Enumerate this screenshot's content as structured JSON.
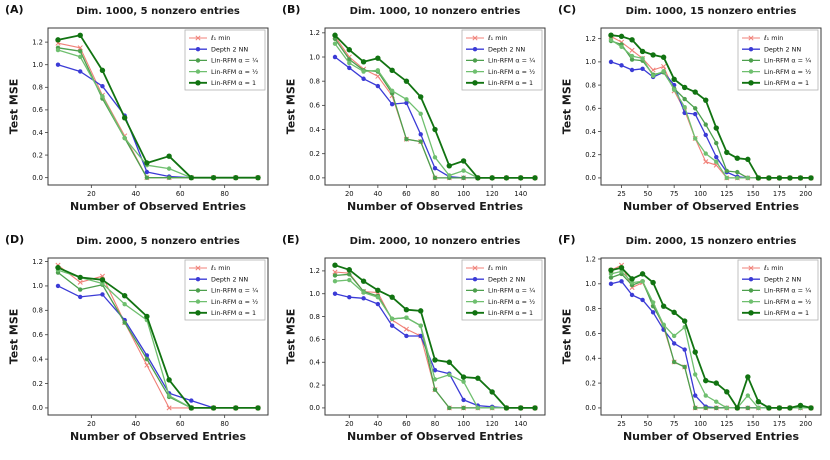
{
  "figure": {
    "xlabel": "Number of Observed Entries",
    "ylabel": "Test MSE",
    "colors": {
      "l1_min": "#f08078",
      "depth2_nn": "#3b3bd6",
      "lin_rfm_quarter": "#4d9f4d",
      "lin_rfm_half": "#6fbf6f",
      "lin_rfm_one": "#117311"
    }
  },
  "chart_data": [
    {
      "type": "line",
      "label": "(A)",
      "title": "Dim. 1000, 5 nonzero entries",
      "xlabel": "Number of Observed Entries",
      "ylabel": "Test MSE",
      "x": [
        5,
        15,
        25,
        35,
        45,
        55,
        65,
        75,
        85,
        95
      ],
      "xticks": [
        20,
        40,
        60,
        80
      ],
      "yticks": [
        0,
        0.2,
        0.4,
        0.6,
        0.8,
        1,
        1.2
      ],
      "xlim": [
        0.5,
        99.5
      ],
      "ylim": [
        -0.065,
        1.325
      ],
      "legend_position": "upper right",
      "series": [
        {
          "name": "ℓ₁ min",
          "color": "#f08078",
          "marker": "x",
          "lw": 1.1,
          "values": [
            1.19,
            1.15,
            0.73,
            0.37,
            0.0,
            0.0,
            0.0,
            0.0,
            0.0,
            0.0
          ]
        },
        {
          "name": "Depth 2 NN",
          "color": "#3b3bd6",
          "marker": "o",
          "lw": 1.3,
          "values": [
            1.0,
            0.94,
            0.81,
            0.55,
            0.05,
            0.01,
            0.0,
            0.0,
            0.0,
            0.0
          ]
        },
        {
          "name": "Lin-RFM α = ¼",
          "color": "#4d9f4d",
          "marker": "o",
          "lw": 1.3,
          "values": [
            1.15,
            1.12,
            0.7,
            0.35,
            0.0,
            0.0,
            0.0,
            0.0,
            0.0,
            0.0
          ]
        },
        {
          "name": "Lin-RFM α = ½",
          "color": "#6fbf6f",
          "marker": "o",
          "lw": 1.3,
          "values": [
            1.13,
            1.07,
            0.72,
            0.35,
            0.11,
            0.08,
            0.0,
            0.0,
            0.0,
            0.0
          ]
        },
        {
          "name": "Lin-RFM α = 1",
          "color": "#117311",
          "marker": "o",
          "lw": 1.8,
          "values": [
            1.22,
            1.26,
            0.95,
            0.53,
            0.13,
            0.19,
            0.0,
            0.0,
            0.0,
            0.0
          ]
        }
      ]
    },
    {
      "type": "line",
      "label": "(B)",
      "title": "Dim. 1000, 10 nonzero entries",
      "xlabel": "Number of Observed Entries",
      "ylabel": "Test MSE",
      "x": [
        10,
        20,
        30,
        40,
        50,
        60,
        70,
        80,
        90,
        100,
        110,
        120,
        130,
        140,
        150
      ],
      "xticks": [
        20,
        40,
        60,
        80,
        100,
        120,
        140
      ],
      "yticks": [
        0,
        0.2,
        0.4,
        0.6,
        0.8,
        1,
        1.2
      ],
      "xlim": [
        3,
        157
      ],
      "ylim": [
        -0.059,
        1.24
      ],
      "legend_position": "upper right",
      "series": [
        {
          "name": "ℓ₁ min",
          "color": "#f08078",
          "marker": "x",
          "lw": 1.1,
          "values": [
            1.17,
            1.0,
            0.9,
            0.84,
            0.68,
            0.32,
            0.3,
            0.0,
            0.0,
            0.0,
            0.0,
            0.0,
            0.0,
            0.0,
            0.0
          ]
        },
        {
          "name": "Depth 2 NN",
          "color": "#3b3bd6",
          "marker": "o",
          "lw": 1.3,
          "values": [
            1.0,
            0.91,
            0.82,
            0.76,
            0.61,
            0.62,
            0.36,
            0.08,
            0.01,
            0.0,
            0.0,
            0.0,
            0.0,
            0.0,
            0.0
          ]
        },
        {
          "name": "Lin-RFM α = ¼",
          "color": "#4d9f4d",
          "marker": "o",
          "lw": 1.3,
          "values": [
            1.15,
            0.98,
            0.89,
            0.88,
            0.7,
            0.32,
            0.3,
            0.0,
            0.0,
            0.0,
            0.0,
            0.0,
            0.0,
            0.0,
            0.0
          ]
        },
        {
          "name": "Lin-RFM α = ½",
          "color": "#6fbf6f",
          "marker": "o",
          "lw": 1.3,
          "values": [
            1.11,
            0.95,
            0.88,
            0.89,
            0.72,
            0.65,
            0.53,
            0.17,
            0.02,
            0.06,
            0.0,
            0.0,
            0.0,
            0.0,
            0.0
          ]
        },
        {
          "name": "Lin-RFM α = 1",
          "color": "#117311",
          "marker": "o",
          "lw": 1.8,
          "values": [
            1.18,
            1.06,
            0.96,
            0.99,
            0.89,
            0.8,
            0.67,
            0.4,
            0.1,
            0.14,
            0.0,
            0.0,
            0.0,
            0.0,
            0.0
          ]
        }
      ]
    },
    {
      "type": "line",
      "label": "(C)",
      "title": "Dim. 1000, 15 nonzero entries",
      "xlabel": "Number of Observed Entries",
      "ylabel": "Test MSE",
      "x": [
        15,
        25,
        35,
        45,
        55,
        65,
        75,
        85,
        95,
        105,
        115,
        125,
        135,
        145,
        155,
        165,
        175,
        185,
        195,
        205
      ],
      "xticks": [
        25,
        50,
        75,
        100,
        125,
        150,
        175,
        200
      ],
      "yticks": [
        0,
        0.2,
        0.4,
        0.6,
        0.8,
        1,
        1.2
      ],
      "xlim": [
        5.5,
        214.5
      ],
      "ylim": [
        -0.061,
        1.292
      ],
      "legend_position": "upper right",
      "series": [
        {
          "name": "ℓ₁ min",
          "color": "#f08078",
          "marker": "x",
          "lw": 1.1,
          "values": [
            1.22,
            1.17,
            1.1,
            1.03,
            0.93,
            0.96,
            0.75,
            0.58,
            0.34,
            0.14,
            0.11,
            0.0,
            0.0,
            0.0,
            0.0,
            0.0,
            0.0,
            0.0,
            0.0,
            0.0
          ]
        },
        {
          "name": "Depth 2 NN",
          "color": "#3b3bd6",
          "marker": "o",
          "lw": 1.3,
          "values": [
            1.0,
            0.97,
            0.93,
            0.94,
            0.87,
            0.91,
            0.8,
            0.56,
            0.55,
            0.37,
            0.18,
            0.05,
            0.01,
            0.0,
            0.0,
            0.0,
            0.0,
            0.0,
            0.0,
            0.0
          ]
        },
        {
          "name": "Lin-RFM α = ¼",
          "color": "#4d9f4d",
          "marker": "o",
          "lw": 1.3,
          "values": [
            1.18,
            1.15,
            1.02,
            1.01,
            0.89,
            0.91,
            0.77,
            0.68,
            0.6,
            0.46,
            0.3,
            0.06,
            0.05,
            0.0,
            0.0,
            0.0,
            0.0,
            0.0,
            0.0,
            0.0
          ]
        },
        {
          "name": "Lin-RFM α = ½",
          "color": "#6fbf6f",
          "marker": "o",
          "lw": 1.3,
          "values": [
            1.19,
            1.13,
            1.05,
            1.03,
            0.88,
            0.92,
            0.76,
            0.61,
            0.34,
            0.21,
            0.14,
            0.0,
            0.0,
            0.0,
            0.0,
            0.0,
            0.0,
            0.0,
            0.0,
            0.0
          ]
        },
        {
          "name": "Lin-RFM α = 1",
          "color": "#117311",
          "marker": "o",
          "lw": 1.8,
          "values": [
            1.23,
            1.22,
            1.19,
            1.09,
            1.06,
            1.04,
            0.85,
            0.78,
            0.74,
            0.67,
            0.43,
            0.22,
            0.17,
            0.16,
            0.0,
            0.0,
            0.0,
            0.0,
            0.0,
            0.0
          ]
        }
      ]
    },
    {
      "type": "line",
      "label": "(D)",
      "title": "Dim. 2000, 5 nonzero entries",
      "xlabel": "Number of Observed Entries",
      "ylabel": "Test MSE",
      "x": [
        5,
        15,
        25,
        35,
        45,
        55,
        65,
        75,
        85,
        95
      ],
      "xticks": [
        20,
        40,
        60,
        80
      ],
      "yticks": [
        0,
        0.2,
        0.4,
        0.6,
        0.8,
        1,
        1.2
      ],
      "xlim": [
        0.5,
        99.5
      ],
      "ylim": [
        -0.058,
        1.229
      ],
      "legend_position": "upper right",
      "series": [
        {
          "name": "ℓ₁ min",
          "color": "#f08078",
          "marker": "x",
          "lw": 1.1,
          "values": [
            1.17,
            1.03,
            1.08,
            0.7,
            0.35,
            0.0,
            0.0,
            0.0,
            0.0,
            0.0
          ]
        },
        {
          "name": "Depth 2 NN",
          "color": "#3b3bd6",
          "marker": "o",
          "lw": 1.3,
          "values": [
            1.0,
            0.91,
            0.93,
            0.72,
            0.43,
            0.12,
            0.06,
            0.0,
            0.0,
            0.0
          ]
        },
        {
          "name": "Lin-RFM α = ¼",
          "color": "#4d9f4d",
          "marker": "o",
          "lw": 1.3,
          "values": [
            1.11,
            0.97,
            1.01,
            0.7,
            0.4,
            0.09,
            0.0,
            0.0,
            0.0,
            0.0
          ]
        },
        {
          "name": "Lin-RFM α = ½",
          "color": "#6fbf6f",
          "marker": "o",
          "lw": 1.3,
          "values": [
            1.13,
            1.07,
            1.02,
            0.85,
            0.72,
            0.1,
            0.0,
            0.0,
            0.0,
            0.0
          ]
        },
        {
          "name": "Lin-RFM α = 1",
          "color": "#117311",
          "marker": "o",
          "lw": 1.8,
          "values": [
            1.15,
            1.07,
            1.05,
            0.92,
            0.75,
            0.23,
            0.0,
            0.0,
            0.0,
            0.0
          ]
        }
      ]
    },
    {
      "type": "line",
      "label": "(E)",
      "title": "Dim. 2000, 10 nonzero entries",
      "xlabel": "Number of Observed Entries",
      "ylabel": "Test MSE",
      "x": [
        10,
        20,
        30,
        40,
        50,
        60,
        70,
        80,
        90,
        100,
        110,
        120,
        130,
        140,
        150
      ],
      "xticks": [
        20,
        40,
        60,
        80,
        100,
        120,
        140
      ],
      "yticks": [
        0,
        0.2,
        0.4,
        0.6,
        0.8,
        1,
        1.2
      ],
      "xlim": [
        3,
        157
      ],
      "ylim": [
        -0.062,
        1.313
      ],
      "legend_position": "upper right",
      "series": [
        {
          "name": "ℓ₁ min",
          "color": "#f08078",
          "marker": "x",
          "lw": 1.1,
          "values": [
            1.19,
            1.18,
            1.02,
            1.01,
            0.77,
            0.69,
            0.63,
            0.16,
            0.0,
            0.0,
            0.0,
            0.0,
            0.0,
            0.0,
            0.0
          ]
        },
        {
          "name": "Depth 2 NN",
          "color": "#3b3bd6",
          "marker": "o",
          "lw": 1.3,
          "values": [
            1.0,
            0.97,
            0.96,
            0.91,
            0.72,
            0.63,
            0.63,
            0.33,
            0.3,
            0.07,
            0.02,
            0.01,
            0.0,
            0.0,
            0.0
          ]
        },
        {
          "name": "Lin-RFM α = ¼",
          "color": "#4d9f4d",
          "marker": "o",
          "lw": 1.3,
          "values": [
            1.16,
            1.17,
            1.02,
            0.98,
            0.78,
            0.79,
            0.72,
            0.16,
            0.0,
            0.0,
            0.0,
            0.0,
            0.0,
            0.0,
            0.0
          ]
        },
        {
          "name": "Lin-RFM α = ½",
          "color": "#6fbf6f",
          "marker": "o",
          "lw": 1.3,
          "values": [
            1.11,
            1.12,
            1.01,
            0.97,
            0.78,
            0.79,
            0.72,
            0.25,
            0.29,
            0.23,
            0.0,
            0.0,
            0.0,
            0.0,
            0.0
          ]
        },
        {
          "name": "Lin-RFM α = 1",
          "color": "#117311",
          "marker": "o",
          "lw": 1.8,
          "values": [
            1.25,
            1.21,
            1.11,
            1.03,
            0.97,
            0.86,
            0.85,
            0.42,
            0.4,
            0.27,
            0.26,
            0.14,
            0.0,
            0.0,
            0.0
          ]
        }
      ]
    },
    {
      "type": "line",
      "label": "(F)",
      "title": "Dim. 2000, 15 nonzero entries",
      "xlabel": "Number of Observed Entries",
      "ylabel": "Test MSE",
      "x": [
        15,
        25,
        35,
        45,
        55,
        65,
        75,
        85,
        95,
        105,
        115,
        125,
        135,
        145,
        155,
        165,
        175,
        185,
        195,
        205
      ],
      "xticks": [
        25,
        50,
        75,
        100,
        125,
        150,
        175,
        200
      ],
      "yticks": [
        0,
        0.2,
        0.4,
        0.6,
        0.8,
        1,
        1.2
      ],
      "xlim": [
        5.5,
        214.5
      ],
      "ylim": [
        -0.057,
        1.208
      ],
      "legend_position": "upper right",
      "series": [
        {
          "name": "ℓ₁ min",
          "color": "#f08078",
          "marker": "x",
          "lw": 1.1,
          "values": [
            1.11,
            1.15,
            0.97,
            1.01,
            0.84,
            0.65,
            0.37,
            0.33,
            0.0,
            0.0,
            0.0,
            0.0,
            0.0,
            0.0,
            0.0,
            0.0,
            0.0,
            0.0,
            0.0,
            0.0
          ]
        },
        {
          "name": "Depth 2 NN",
          "color": "#3b3bd6",
          "marker": "o",
          "lw": 1.3,
          "values": [
            1.0,
            1.02,
            0.91,
            0.87,
            0.77,
            0.63,
            0.52,
            0.47,
            0.1,
            0.01,
            0.0,
            0.0,
            0.0,
            0.0,
            0.0,
            0.0,
            0.0,
            0.0,
            0.0,
            0.0
          ]
        },
        {
          "name": "Lin-RFM α = ¼",
          "color": "#4d9f4d",
          "marker": "o",
          "lw": 1.3,
          "values": [
            1.05,
            1.08,
            0.99,
            1.02,
            0.82,
            0.67,
            0.37,
            0.33,
            0.0,
            0.0,
            0.0,
            0.0,
            0.0,
            0.0,
            0.0,
            0.0,
            0.0,
            0.0,
            0.0,
            0.0
          ]
        },
        {
          "name": "Lin-RFM α = ½",
          "color": "#6fbf6f",
          "marker": "o",
          "lw": 1.3,
          "values": [
            1.08,
            1.1,
            1.01,
            1.02,
            0.85,
            0.67,
            0.58,
            0.65,
            0.27,
            0.1,
            0.05,
            0.0,
            0.0,
            0.1,
            0.0,
            0.0,
            0.0,
            0.0,
            0.0,
            0.0
          ]
        },
        {
          "name": "Lin-RFM α = 1",
          "color": "#117311",
          "marker": "o",
          "lw": 1.8,
          "values": [
            1.11,
            1.13,
            1.04,
            1.08,
            1.01,
            0.82,
            0.77,
            0.7,
            0.45,
            0.22,
            0.2,
            0.13,
            0.0,
            0.25,
            0.05,
            0.0,
            0.0,
            0.0,
            0.02,
            0.0
          ]
        }
      ]
    }
  ]
}
